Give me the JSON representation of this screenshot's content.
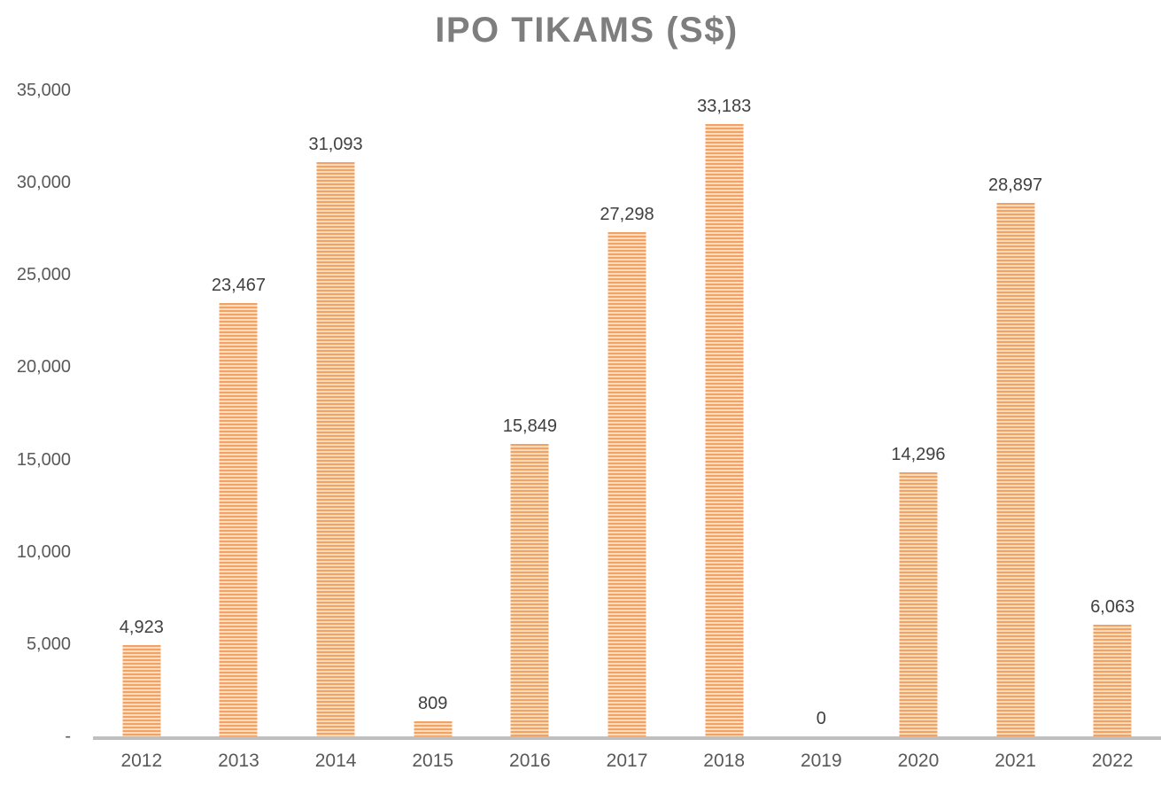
{
  "chart_data": {
    "type": "bar",
    "title": "IPO TIKAMS (S$)",
    "categories": [
      "2012",
      "2013",
      "2014",
      "2015",
      "2016",
      "2017",
      "2018",
      "2019",
      "2020",
      "2021",
      "2022"
    ],
    "values": [
      4923,
      23467,
      31093,
      809,
      15849,
      27298,
      33183,
      0,
      14296,
      28897,
      6063
    ],
    "data_labels": [
      "4,923",
      "23,467",
      "31,093",
      "809",
      "15,849",
      "27,298",
      "33,183",
      "0",
      "14,296",
      "28,897",
      "6,063"
    ],
    "xlabel": "",
    "ylabel": "",
    "ylim": [
      0,
      35000
    ],
    "ytick_interval": 5000,
    "yticks": [
      {
        "value": 35000,
        "label": "35,000"
      },
      {
        "value": 30000,
        "label": "30,000"
      },
      {
        "value": 25000,
        "label": "25,000"
      },
      {
        "value": 20000,
        "label": "20,000"
      },
      {
        "value": 15000,
        "label": "15,000"
      },
      {
        "value": 10000,
        "label": "10,000"
      },
      {
        "value": 5000,
        "label": "5,000"
      },
      {
        "value": 0,
        "label": "-"
      }
    ],
    "grid": false,
    "legend": false,
    "bar_pattern": "horizontal-stripes",
    "colors": {
      "bar_stripe_dark": "#F4A263",
      "bar_stripe_light": "#FBDDBE",
      "axis_line": "#BFBFBF",
      "tick_label": "#595959",
      "data_label": "#404040",
      "title": "#7E7E7E"
    }
  }
}
